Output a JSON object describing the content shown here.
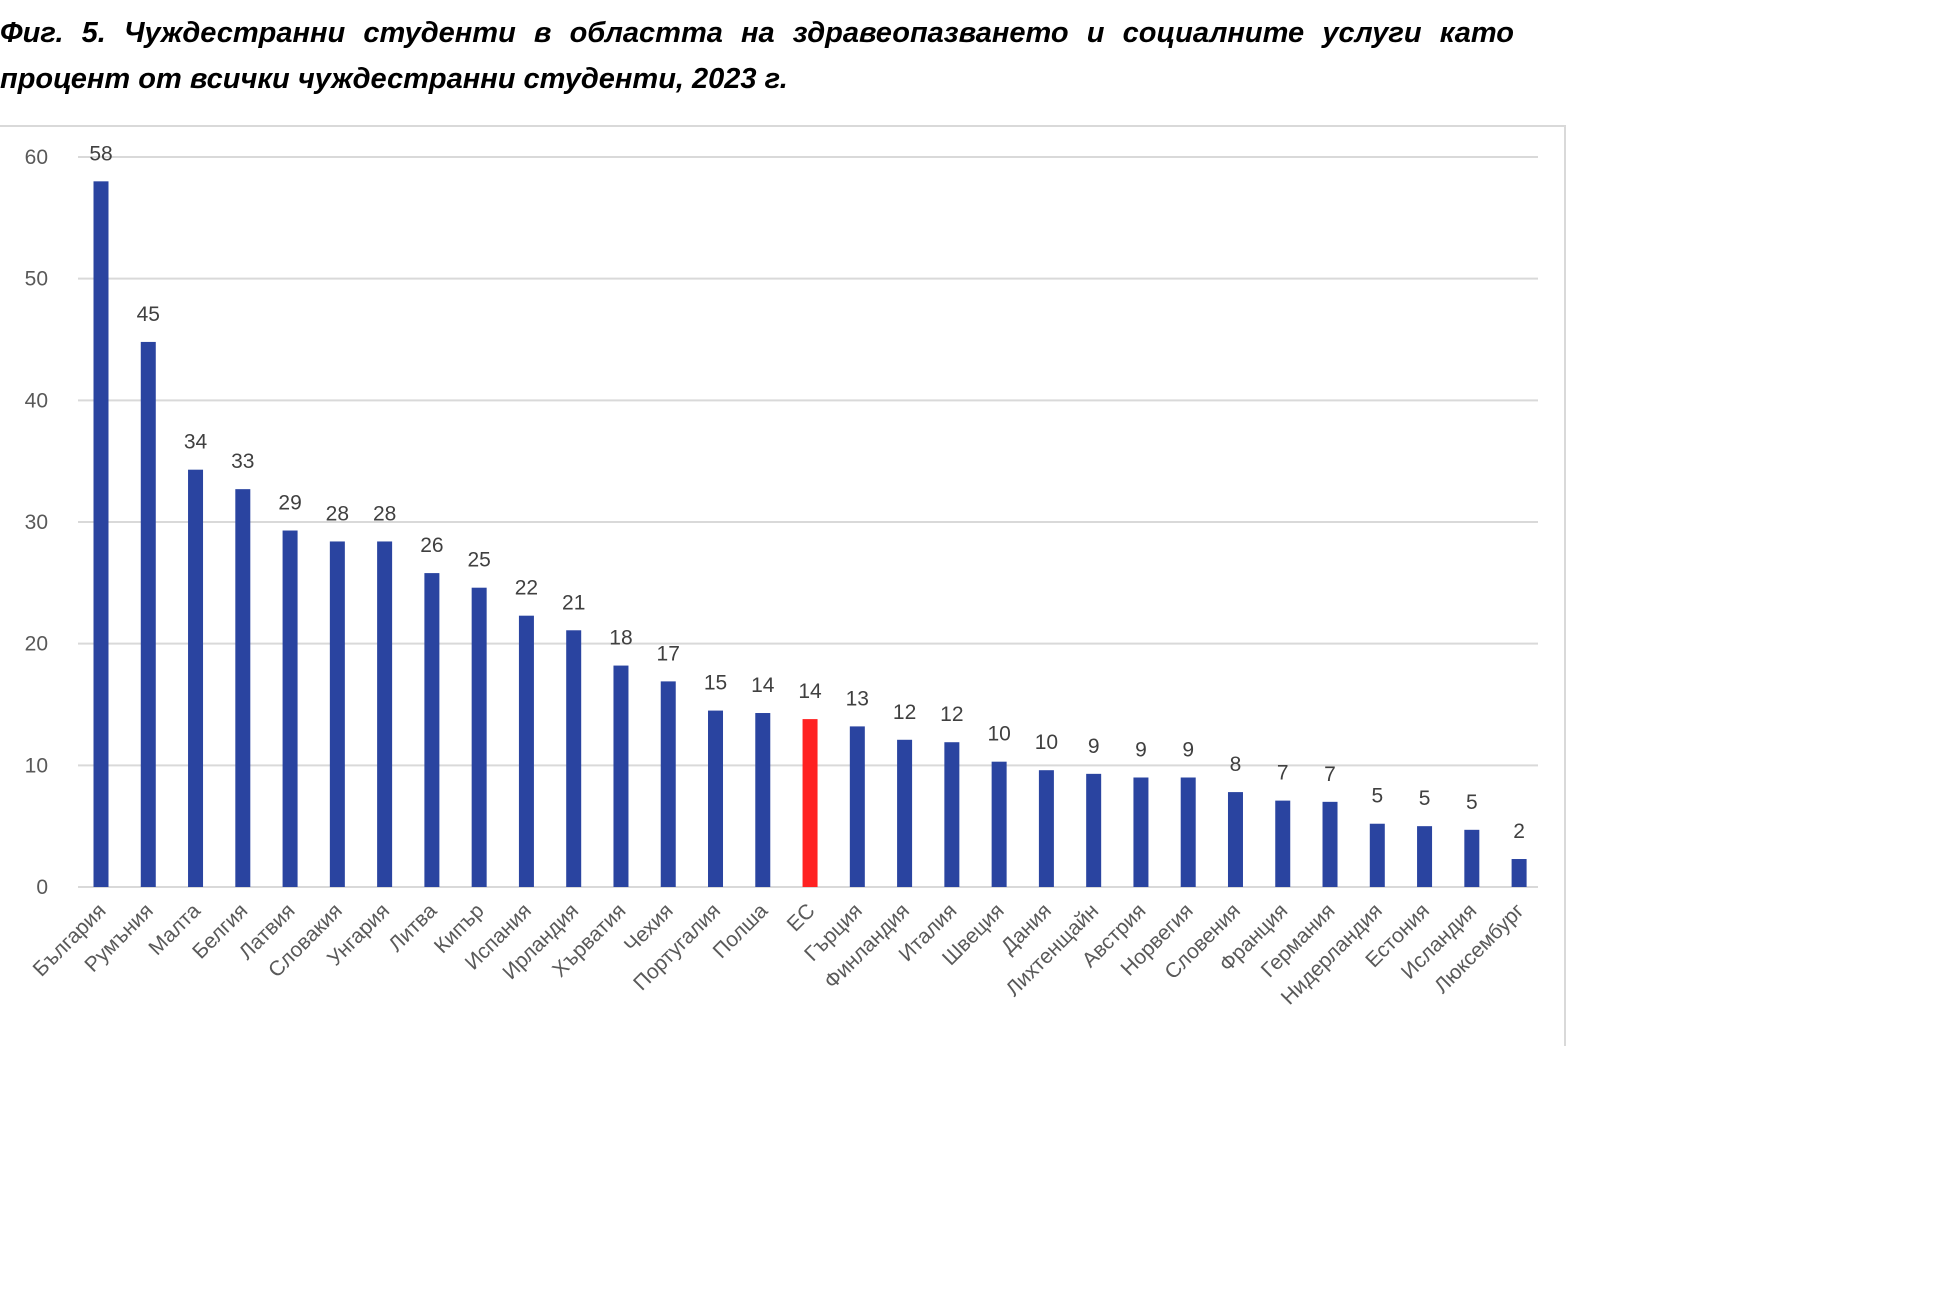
{
  "caption": "Фиг. 5. Чуждестранни студенти в областта на здравеопазването и социалните услуги като процент от всички чуждестранни студенти, 2023 г.",
  "colors": {
    "bar": "#2a44a0",
    "highlight": "#ff2222",
    "grid": "#d9d9d9"
  },
  "chart_data": {
    "type": "bar",
    "ylim": [
      0,
      60
    ],
    "yticks": [
      "0",
      "10",
      "20",
      "30",
      "40",
      "50",
      "60"
    ],
    "grid": true,
    "highlight_category": "ЕС",
    "categories": [
      "България",
      "Румъния",
      "Малта",
      "Белгия",
      "Латвия",
      "Словакия",
      "Унгария",
      "Литва",
      "Кипър",
      "Испания",
      "Ирландия",
      "Хърватия",
      "Чехия",
      "Португалия",
      "Полша",
      "ЕС",
      "Гърция",
      "Финландия",
      "Италия",
      "Швеция",
      "Дания",
      "Лихтенщайн",
      "Австрия",
      "Норвегия",
      "Словения",
      "Франция",
      "Германия",
      "Нидерландия",
      "Естония",
      "Исландия",
      "Люксембург"
    ],
    "values": [
      58.0,
      44.8,
      34.3,
      32.7,
      29.3,
      28.4,
      28.4,
      25.8,
      24.6,
      22.3,
      21.1,
      18.2,
      16.9,
      14.5,
      14.3,
      13.8,
      13.2,
      12.1,
      11.9,
      10.3,
      9.6,
      9.3,
      9.0,
      9.0,
      7.8,
      7.1,
      7.0,
      5.2,
      5.0,
      4.7,
      2.3
    ],
    "data_labels": [
      "58",
      "45",
      "34",
      "33",
      "29",
      "28",
      "28",
      "26",
      "25",
      "22",
      "21",
      "18",
      "17",
      "15",
      "14",
      "14",
      "13",
      "12",
      "12",
      "10",
      "10",
      "9",
      "9",
      "9",
      "8",
      "7",
      "7",
      "5",
      "5",
      "5",
      "2"
    ]
  }
}
